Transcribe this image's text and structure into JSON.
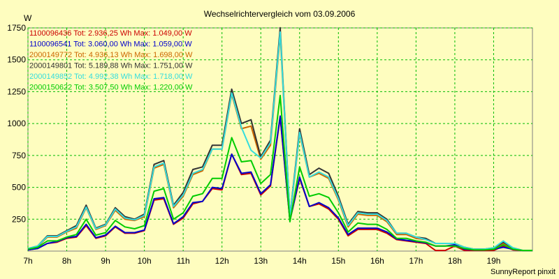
{
  "chart_data": {
    "type": "line",
    "title": "Wechselrichtervergleich vom 03.09.2006",
    "ylabel": "W",
    "footer": "SunnyReport pinxit",
    "ylim": [
      0,
      1750
    ],
    "yticks": [
      "250",
      "500",
      "750",
      "1000",
      "1250",
      "1500",
      "1750"
    ],
    "ytick_values": [
      250,
      500,
      750,
      1000,
      1250,
      1500,
      1750
    ],
    "xlim": [
      7.0,
      20.0
    ],
    "xticks": [
      "7h",
      "8h",
      "9h",
      "10h",
      "11h",
      "12h",
      "13h",
      "14h",
      "15h",
      "16h",
      "17h",
      "18h",
      "19h"
    ],
    "xtick_values": [
      7,
      8,
      9,
      10,
      11,
      12,
      13,
      14,
      15,
      16,
      17,
      18,
      19
    ],
    "x": [
      7.0,
      7.25,
      7.5,
      7.75,
      8.0,
      8.25,
      8.5,
      8.75,
      9.0,
      9.25,
      9.5,
      9.75,
      10.0,
      10.25,
      10.5,
      10.75,
      11.0,
      11.25,
      11.5,
      11.75,
      12.0,
      12.25,
      12.5,
      12.75,
      13.0,
      13.25,
      13.5,
      13.75,
      14.0,
      14.25,
      14.5,
      14.75,
      15.0,
      15.25,
      15.5,
      15.75,
      16.0,
      16.25,
      16.5,
      16.75,
      17.0,
      17.25,
      17.5,
      17.75,
      18.0,
      18.25,
      18.5,
      18.75,
      19.0,
      19.25,
      19.5,
      19.75,
      20.0
    ],
    "series": [
      {
        "name": "1100096436",
        "legend": "1100096436 Tot: 2.936,25 Wh Max: 1.049,00 W",
        "color": "#cc0000",
        "values": [
          10,
          20,
          60,
          70,
          100,
          110,
          200,
          100,
          120,
          190,
          140,
          140,
          160,
          400,
          410,
          210,
          260,
          370,
          390,
          490,
          480,
          760,
          600,
          610,
          440,
          510,
          1049,
          240,
          570,
          350,
          370,
          330,
          250,
          120,
          170,
          170,
          170,
          140,
          90,
          80,
          70,
          60,
          5,
          5,
          40,
          5,
          5,
          5,
          5,
          40,
          10,
          5,
          5
        ]
      },
      {
        "name": "1100096541",
        "legend": "1100096541 Tot: 3.060,00 Wh Max: 1.059,00 W",
        "color": "#0000cc",
        "values": [
          10,
          20,
          60,
          75,
          105,
          115,
          210,
          105,
          125,
          195,
          145,
          145,
          165,
          410,
          420,
          215,
          270,
          380,
          390,
          500,
          490,
          760,
          610,
          620,
          450,
          520,
          1059,
          240,
          580,
          350,
          380,
          340,
          260,
          130,
          180,
          180,
          180,
          150,
          95,
          85,
          75,
          65,
          40,
          40,
          50,
          15,
          10,
          10,
          15,
          30,
          15,
          5,
          5
        ]
      },
      {
        "name": "2000149772",
        "legend": "2000149772 Tot: 4.936,13 Wh Max: 1.698,00 W",
        "color": "#cc6600",
        "values": [
          20,
          35,
          110,
          110,
          150,
          180,
          340,
          170,
          200,
          320,
          250,
          240,
          270,
          650,
          680,
          340,
          430,
          600,
          630,
          800,
          800,
          1230,
          960,
          980,
          720,
          830,
          1698,
          260,
          920,
          580,
          610,
          570,
          400,
          190,
          290,
          280,
          280,
          230,
          130,
          130,
          100,
          90,
          60,
          60,
          60,
          30,
          15,
          15,
          20,
          60,
          20,
          5,
          5
        ]
      },
      {
        "name": "2000149801",
        "legend": "2000149801 Tot: 5.189,88 Wh Max: 1.751,00 W",
        "color": "#333333",
        "values": [
          20,
          40,
          120,
          120,
          160,
          200,
          360,
          180,
          210,
          340,
          270,
          250,
          290,
          680,
          710,
          360,
          460,
          640,
          660,
          830,
          830,
          1270,
          1000,
          1030,
          740,
          870,
          1751,
          270,
          960,
          600,
          650,
          610,
          430,
          210,
          310,
          300,
          300,
          250,
          140,
          140,
          110,
          100,
          60,
          60,
          60,
          30,
          15,
          15,
          25,
          70,
          25,
          5,
          5
        ]
      },
      {
        "name": "2000149852",
        "legend": "2000149852 Tot: 4.992,38 Wh Max: 1.718,00 W",
        "color": "#33dddd",
        "values": [
          20,
          40,
          115,
          115,
          155,
          190,
          345,
          175,
          205,
          330,
          260,
          245,
          280,
          660,
          690,
          350,
          440,
          610,
          640,
          800,
          800,
          1240,
          970,
          790,
          730,
          850,
          1718,
          270,
          930,
          580,
          620,
          580,
          410,
          200,
          300,
          290,
          290,
          240,
          140,
          140,
          110,
          90,
          60,
          60,
          60,
          30,
          15,
          15,
          25,
          80,
          25,
          5,
          5
        ]
      },
      {
        "name": "2000150622",
        "legend": "2000150622 Tot: 3.507,50 Wh Max: 1.220,00 W",
        "color": "#00cc00",
        "values": [
          15,
          30,
          80,
          80,
          110,
          130,
          250,
          125,
          145,
          240,
          190,
          175,
          200,
          470,
          490,
          250,
          300,
          430,
          450,
          570,
          570,
          890,
          700,
          710,
          530,
          600,
          1220,
          230,
          660,
          430,
          450,
          420,
          300,
          150,
          220,
          210,
          210,
          170,
          100,
          100,
          80,
          70,
          40,
          40,
          40,
          20,
          10,
          10,
          15,
          50,
          15,
          5,
          5
        ]
      }
    ]
  }
}
